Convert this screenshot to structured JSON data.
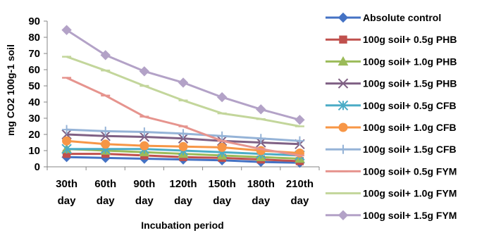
{
  "chart_data": {
    "type": "line",
    "title": "",
    "xlabel": "Incubation period",
    "ylabel": "mg CO2 100g-1 soil",
    "ylim": [
      0,
      90
    ],
    "yticks": [
      0,
      10,
      20,
      30,
      40,
      50,
      60,
      70,
      80,
      90
    ],
    "grid": false,
    "legend_position": "right",
    "categories": [
      [
        "30th",
        "day"
      ],
      [
        "60th",
        "day"
      ],
      [
        "90th",
        "day"
      ],
      [
        "120th",
        "day"
      ],
      [
        "150th",
        "day"
      ],
      [
        "180th",
        "day"
      ],
      [
        "210th",
        "day"
      ]
    ],
    "series": [
      {
        "name": "Absolute control",
        "color": "#4472C4",
        "marker": "diamond",
        "values": [
          6,
          5.5,
          5,
          4.5,
          4,
          3,
          2.5
        ]
      },
      {
        "name": "100g soil+ 0.5g PHB",
        "color": "#C0504D",
        "marker": "square",
        "values": [
          8,
          8,
          7,
          6,
          5.5,
          4.5,
          3.5
        ]
      },
      {
        "name": "100g soil+ 1.0g PHB",
        "color": "#9BBB59",
        "marker": "triangle",
        "values": [
          11,
          10,
          9,
          8,
          7,
          6,
          5
        ]
      },
      {
        "name": "100g soil+ 1.5g PHB",
        "color": "#7F6084",
        "marker": "x",
        "values": [
          20,
          19,
          18.5,
          17.5,
          16,
          15,
          14
        ]
      },
      {
        "name": "100g soil+ 0.5g CFB",
        "color": "#4BACC6",
        "marker": "star",
        "values": [
          11,
          11,
          11,
          10,
          9,
          8,
          7
        ]
      },
      {
        "name": "100g soil+ 1.0g CFB",
        "color": "#F79646",
        "marker": "circle",
        "values": [
          16,
          14,
          13,
          12.5,
          12,
          10,
          8.5
        ]
      },
      {
        "name": "100g soil+ 1.5g CFB",
        "color": "#95B3D7",
        "marker": "plus",
        "values": [
          23,
          22,
          21.5,
          20.5,
          19,
          17.5,
          16
        ]
      },
      {
        "name": "100g soil+ 0.5g FYM",
        "color": "#E6948E",
        "marker": "dash",
        "values": [
          55,
          44,
          31,
          25,
          16,
          11,
          7
        ]
      },
      {
        "name": "100g soil+ 1.0g FYM",
        "color": "#C3D69B",
        "marker": "dash",
        "values": [
          68,
          59.5,
          50,
          41,
          33,
          29.5,
          25
        ]
      },
      {
        "name": "100g soil+ 1.5g FYM",
        "color": "#B3A2C7",
        "marker": "diamond",
        "values": [
          84.5,
          69,
          59,
          52,
          43,
          35.5,
          29
        ]
      }
    ]
  }
}
